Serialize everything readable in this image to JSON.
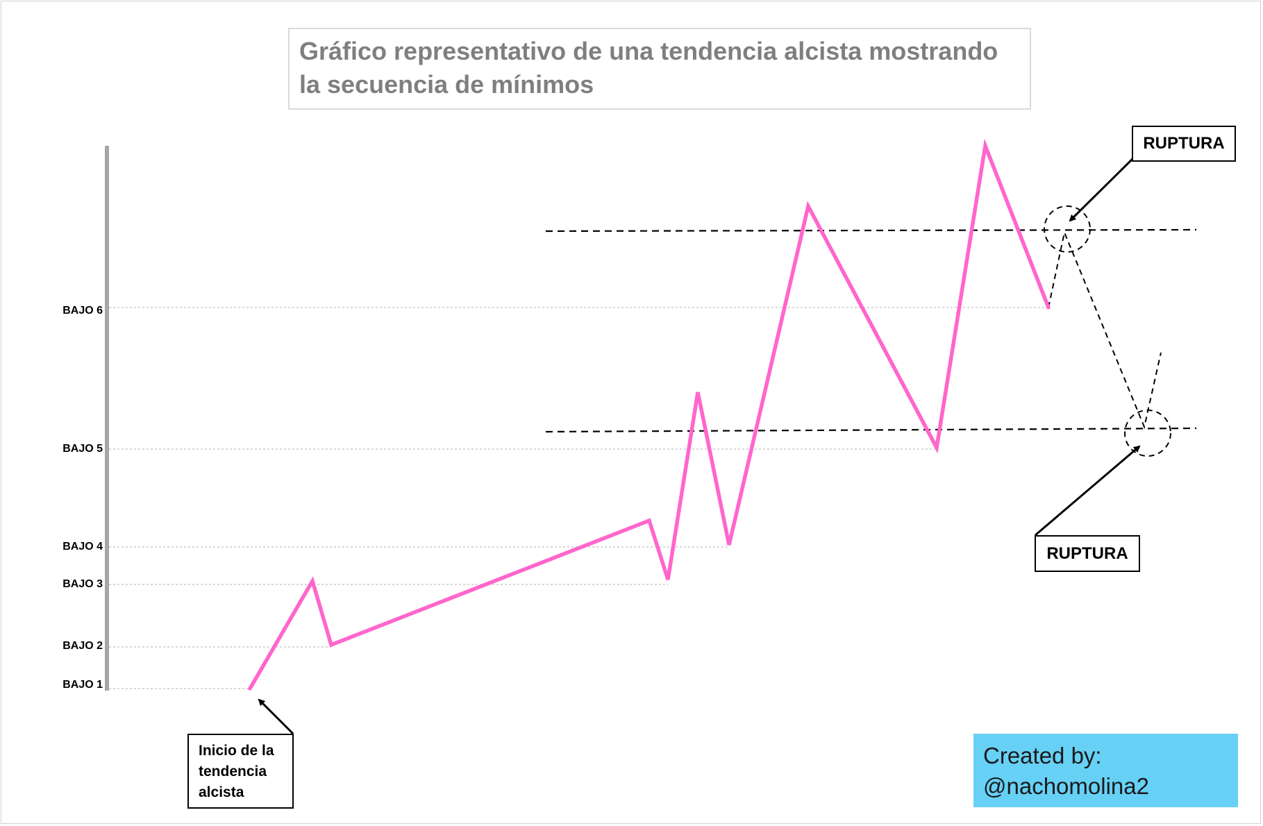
{
  "title": {
    "line1": "Gráfico representativo de una tendencia alcista mostrando",
    "line2": "la secuencia de mínimos"
  },
  "levels": [
    {
      "label": "BAJO 1"
    },
    {
      "label": "BAJO 2"
    },
    {
      "label": "BAJO 3"
    },
    {
      "label": "BAJO 4"
    },
    {
      "label": "BAJO 5"
    },
    {
      "label": "BAJO 6"
    }
  ],
  "callouts": {
    "inicio": {
      "line1": "Inicio de la",
      "line2": "tendencia",
      "line3": "alcista"
    },
    "ruptura_top": "RUPTURA",
    "ruptura_bottom": "RUPTURA"
  },
  "credit": {
    "line1": "Created by:",
    "line2": "@nachomolina2"
  },
  "colors": {
    "trend_line": "#ff66cc",
    "credit_bg": "#66d0f5",
    "axis": "#a6a6a6",
    "title_text": "#7f7f7f"
  }
}
